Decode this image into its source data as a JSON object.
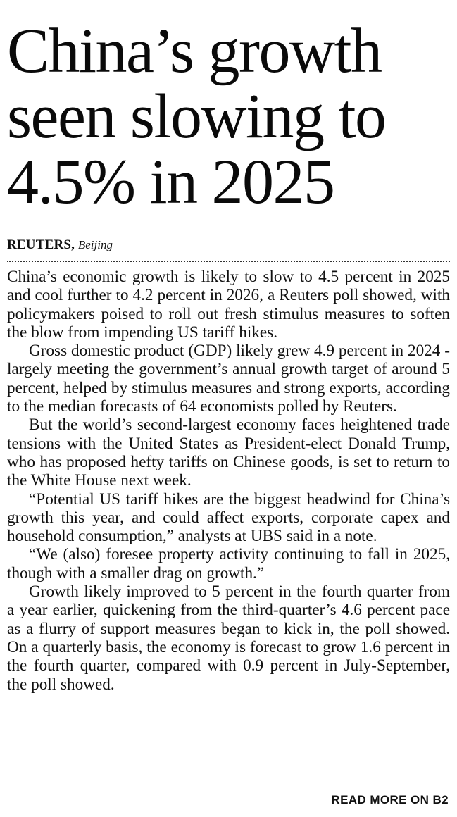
{
  "article": {
    "headline_lines": [
      "China’s growth",
      "seen slowing to",
      "4.5% in 2025"
    ],
    "byline": {
      "agency": "REUTERS,",
      "location": "Beijing"
    },
    "paragraphs": [
      "China’s economic growth is likely to slow to 4.5 percent in 2025 and cool further to 4.2 percent in 2026, a Reuters poll showed, with policymakers poised to roll out fresh stimulus measures to soften the blow from impending US tariff hikes.",
      "Gross domestic product (GDP) likely grew 4.9 percent in 2024 - largely meeting the government’s annual growth target of around 5 percent, helped by stimulus measures and strong exports, according to the median forecasts of 64 economists polled by Reuters.",
      "But the world’s second-largest economy faces heightened trade tensions with the United States as President-elect Donald Trump, who has proposed hefty tariffs on Chinese goods, is set to return to the White House next week.",
      "“Potential US tariff hikes are the biggest headwind for China’s growth this year, and could affect exports, corporate capex and household consumption,” analysts at UBS said in a note.",
      "“We (also) foresee property activity continuing to fall in 2025, though with a smaller drag on growth.”",
      "Growth likely improved to 5 percent in the fourth quarter from a year earlier, quickening from the third-quarter’s 4.6 percent pace as a flurry of support measures began to kick in, the poll showed. On a quarterly basis, the economy is forecast to grow 1.6 percent in the fourth quarter, compared with 0.9 percent in July-September, the poll showed."
    ],
    "read_more": "READ MORE ON B2"
  }
}
